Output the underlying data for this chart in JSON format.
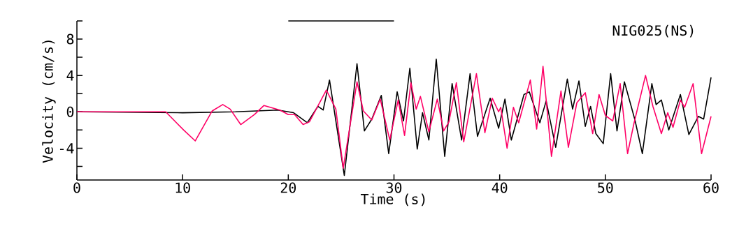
{
  "chart_data": {
    "type": "line",
    "xlabel": "Time (s)",
    "ylabel": "Velocity (cm/s)",
    "annotations": [
      "NIG025(NS)"
    ],
    "xlim": [
      0,
      60
    ],
    "ylim": [
      -7.5,
      10
    ],
    "xticks": [
      0,
      10,
      20,
      30,
      40,
      50,
      60
    ],
    "yticks": [
      {
        "value": -6,
        "label": null
      },
      -4,
      {
        "value": -2,
        "label": null
      },
      0,
      {
        "value": 2,
        "label": null
      },
      4,
      {
        "value": 6,
        "label": null
      },
      8,
      {
        "value": 10,
        "label": null
      }
    ],
    "marker": "none",
    "line_style": "solid",
    "series": [
      {
        "color": "#000000",
        "x": [
          0,
          10,
          15,
          19,
          20.5,
          21.8,
          22.8,
          23.3,
          23.9,
          25.3,
          26.5,
          27.2,
          27.9,
          28.8,
          29.5,
          30.3,
          30.9,
          31.5,
          32.2,
          32.7,
          33.3,
          34.0,
          34.8,
          35.5,
          36.4,
          37.2,
          37.9,
          39.1,
          39.9,
          40.5,
          41.1,
          42.3,
          42.8,
          43.8,
          44.4,
          45.3,
          46.4,
          46.9,
          47.5,
          48.1,
          48.6,
          49.1,
          49.8,
          50.5,
          51.1,
          51.8,
          52.8,
          53.5,
          54.4,
          54.8,
          55.3,
          56.0,
          57.1,
          57.9,
          58.8,
          59.3,
          60.0
        ],
        "values": [
          0,
          -0.1,
          0,
          0.2,
          -0.1,
          -1.2,
          0.6,
          0.2,
          3.5,
          -7.0,
          5.3,
          -2.1,
          -0.8,
          1.8,
          -4.6,
          2.2,
          -1.0,
          4.8,
          -4.1,
          -0.1,
          -3.1,
          5.8,
          -4.9,
          3.1,
          -3.1,
          4.2,
          -2.7,
          1.5,
          -1.8,
          1.4,
          -3.1,
          1.9,
          2.2,
          -1.2,
          1.2,
          -3.9,
          3.6,
          0.3,
          3.4,
          -1.6,
          0.6,
          -2.4,
          -3.5,
          4.2,
          -2.1,
          3.3,
          -0.9,
          -4.6,
          3.1,
          0.8,
          1.3,
          -2.0,
          1.9,
          -2.5,
          -0.5,
          -0.8,
          3.8
        ]
      },
      {
        "color": "#ff0066",
        "x": [
          0,
          8.4,
          10.1,
          11.2,
          12.8,
          13.8,
          14.5,
          15.5,
          16.8,
          17.7,
          19.2,
          20.0,
          20.6,
          21.4,
          22.0,
          23.6,
          24.5,
          25.2,
          26.5,
          27.1,
          27.9,
          28.7,
          29.6,
          30.4,
          31.0,
          31.6,
          32.1,
          32.5,
          33.3,
          34.1,
          34.7,
          35.2,
          35.9,
          36.6,
          37.8,
          38.6,
          39.3,
          39.9,
          40.1,
          40.7,
          41.3,
          41.8,
          42.9,
          43.5,
          44.1,
          44.9,
          45.8,
          46.5,
          47.3,
          48.1,
          48.8,
          49.4,
          50.0,
          50.7,
          51.4,
          52.1,
          52.7,
          53.8,
          54.5,
          55.3,
          55.9,
          56.4,
          57.1,
          57.5,
          58.3,
          59.1,
          60.0
        ],
        "values": [
          0,
          0,
          -2.0,
          -3.2,
          0.1,
          0.8,
          0.3,
          -1.4,
          -0.3,
          0.7,
          0.2,
          -0.3,
          -0.3,
          -1.4,
          -1.1,
          2.4,
          0.3,
          -6.2,
          3.3,
          0.1,
          -0.9,
          1.4,
          -3.1,
          1.3,
          -2.6,
          3.2,
          0.3,
          1.7,
          -2.2,
          1.4,
          -2.1,
          -1.1,
          3.2,
          -3.3,
          4.2,
          -2.3,
          1.5,
          0.0,
          0.5,
          -4.0,
          0.5,
          -1.2,
          3.5,
          -1.9,
          5.0,
          -4.9,
          2.3,
          -3.9,
          1.0,
          2.1,
          -2.4,
          1.9,
          -0.4,
          -1.0,
          3.1,
          -4.6,
          -1.3,
          4.0,
          0.6,
          -2.4,
          -0.1,
          -1.7,
          1.3,
          0.5,
          3.1,
          -4.6,
          -0.5
        ]
      },
      {
        "type": "line",
        "color": "#000000",
        "x": [
          20,
          30
        ],
        "values": [
          10,
          10
        ]
      }
    ]
  }
}
